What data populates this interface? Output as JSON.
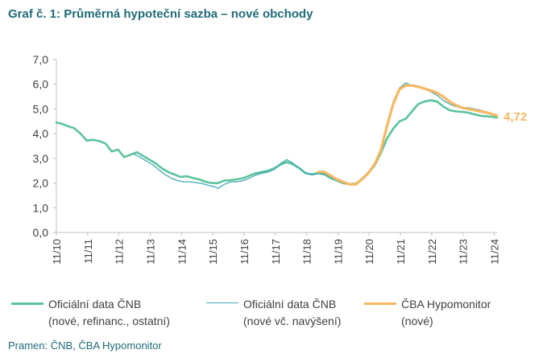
{
  "title": "Graf č. 1: Průměrná hypoteční sazba – nové obchody",
  "source": "Pramen: ČNB, ČBA Hypomonitor",
  "chart_data": {
    "type": "line",
    "ylim": [
      0,
      7
    ],
    "yticks": [
      "0,0",
      "1,0",
      "2,0",
      "3,0",
      "4,0",
      "5,0",
      "6,0",
      "7,0"
    ],
    "xticks": [
      "11/10",
      "11/11",
      "11/12",
      "11/13",
      "11/14",
      "11/15",
      "11/16",
      "11/17",
      "11/18",
      "11/19",
      "11/20",
      "11/21",
      "11/22",
      "11/23",
      "11/24"
    ],
    "grid": false,
    "legend_position": "bottom",
    "end_label": "4,72",
    "series": [
      {
        "name": "Oficiální data ČNB (nové, refinanc., ostatní)",
        "legend_line1": "Oficiální data ČNB",
        "legend_line2": "(nové, refinanc., ostatní)",
        "color": "#5bc39a",
        "width": 2.6,
        "x": [
          2010.83,
          2011.0,
          2011.2,
          2011.4,
          2011.6,
          2011.8,
          2012.0,
          2012.2,
          2012.4,
          2012.6,
          2012.8,
          2013.0,
          2013.2,
          2013.4,
          2013.6,
          2013.8,
          2014.0,
          2014.2,
          2014.4,
          2014.6,
          2014.8,
          2015.0,
          2015.2,
          2015.4,
          2015.6,
          2015.8,
          2016.0,
          2016.2,
          2016.4,
          2016.6,
          2016.8,
          2017.0,
          2017.2,
          2017.4,
          2017.6,
          2017.8,
          2018.0,
          2018.2,
          2018.4,
          2018.6,
          2018.8,
          2019.0,
          2019.2,
          2019.4,
          2019.6,
          2019.8,
          2020.0,
          2020.2,
          2020.4,
          2020.6,
          2020.8,
          2021.0,
          2021.2,
          2021.4,
          2021.6,
          2021.8,
          2022.0,
          2022.2,
          2022.4,
          2022.6,
          2022.8,
          2023.0,
          2023.2,
          2023.4,
          2023.6,
          2023.8,
          2024.0,
          2024.2,
          2024.4,
          2024.6,
          2024.8,
          2024.92
        ],
        "y": [
          4.45,
          4.4,
          4.3,
          4.22,
          4.0,
          3.72,
          3.75,
          3.7,
          3.6,
          3.28,
          3.35,
          3.05,
          3.15,
          3.25,
          3.1,
          2.95,
          2.8,
          2.6,
          2.45,
          2.35,
          2.25,
          2.28,
          2.2,
          2.15,
          2.05,
          2.0,
          2.0,
          2.1,
          2.12,
          2.15,
          2.2,
          2.3,
          2.4,
          2.45,
          2.5,
          2.6,
          2.75,
          2.85,
          2.75,
          2.6,
          2.4,
          2.35,
          2.4,
          2.35,
          2.2,
          2.1,
          2.0,
          1.95,
          1.98,
          2.15,
          2.4,
          2.7,
          3.2,
          3.8,
          4.2,
          4.5,
          4.6,
          4.9,
          5.2,
          5.3,
          5.35,
          5.3,
          5.1,
          4.95,
          4.9,
          4.88,
          4.85,
          4.78,
          4.72,
          4.7,
          4.68,
          4.65
        ]
      },
      {
        "name": "Oficiální data ČNB (nové vč. navýšení)",
        "legend_line1": "Oficiální data ČNB",
        "legend_line2": "(nové vč. navýšení)",
        "color": "#3fa7b8",
        "width": 1.3,
        "x": [
          2013.3,
          2013.5,
          2013.7,
          2013.9,
          2014.1,
          2014.3,
          2014.5,
          2014.7,
          2014.9,
          2015.1,
          2015.3,
          2015.5,
          2015.7,
          2015.9,
          2016.0,
          2016.2,
          2016.4,
          2016.6,
          2016.8,
          2017.0,
          2017.2,
          2017.4,
          2017.6,
          2017.8,
          2018.0,
          2018.2,
          2018.4,
          2018.6,
          2018.8,
          2019.0,
          2019.2,
          2019.4,
          2019.6,
          2019.8,
          2020.0,
          2020.2,
          2020.4,
          2020.6,
          2020.8,
          2021.0,
          2021.2,
          2021.4,
          2021.6,
          2021.8,
          2022.0,
          2022.2,
          2022.4,
          2022.6,
          2022.8,
          2023.0,
          2023.2,
          2023.4,
          2023.6,
          2023.8,
          2024.0,
          2024.2,
          2024.4,
          2024.6,
          2024.8,
          2024.92
        ],
        "y": [
          3.18,
          3.05,
          2.9,
          2.75,
          2.55,
          2.35,
          2.2,
          2.1,
          2.05,
          2.05,
          2.02,
          1.98,
          1.9,
          1.85,
          1.78,
          1.95,
          2.05,
          2.05,
          2.1,
          2.2,
          2.32,
          2.4,
          2.45,
          2.55,
          2.8,
          2.95,
          2.8,
          2.6,
          2.4,
          2.35,
          2.38,
          2.38,
          2.22,
          2.1,
          2.0,
          1.95,
          1.98,
          2.2,
          2.45,
          2.8,
          3.4,
          4.4,
          5.3,
          5.85,
          6.05,
          5.95,
          5.9,
          5.8,
          5.7,
          5.55,
          5.35,
          5.2,
          5.1,
          5.05,
          5.05,
          5.0,
          4.95,
          4.85,
          4.8,
          4.75
        ]
      },
      {
        "name": "ČBA Hypomonitor (nové)",
        "legend_line1": "ČBA Hypomonitor",
        "legend_line2": "(nové)",
        "color": "#f6b862",
        "width": 3.2,
        "x": [
          2019.2,
          2019.4,
          2019.6,
          2019.8,
          2020.0,
          2020.2,
          2020.4,
          2020.6,
          2020.8,
          2021.0,
          2021.2,
          2021.4,
          2021.6,
          2021.8,
          2022.0,
          2022.2,
          2022.4,
          2022.6,
          2022.8,
          2023.0,
          2023.2,
          2023.4,
          2023.6,
          2023.8,
          2024.0,
          2024.2,
          2024.4,
          2024.6,
          2024.8,
          2024.92
        ],
        "y": [
          2.45,
          2.45,
          2.3,
          2.15,
          2.05,
          1.95,
          1.95,
          2.15,
          2.4,
          2.75,
          3.3,
          4.3,
          5.2,
          5.8,
          5.95,
          5.95,
          5.9,
          5.82,
          5.75,
          5.65,
          5.5,
          5.3,
          5.15,
          5.05,
          5.0,
          4.95,
          4.9,
          4.85,
          4.78,
          4.72
        ]
      }
    ]
  }
}
